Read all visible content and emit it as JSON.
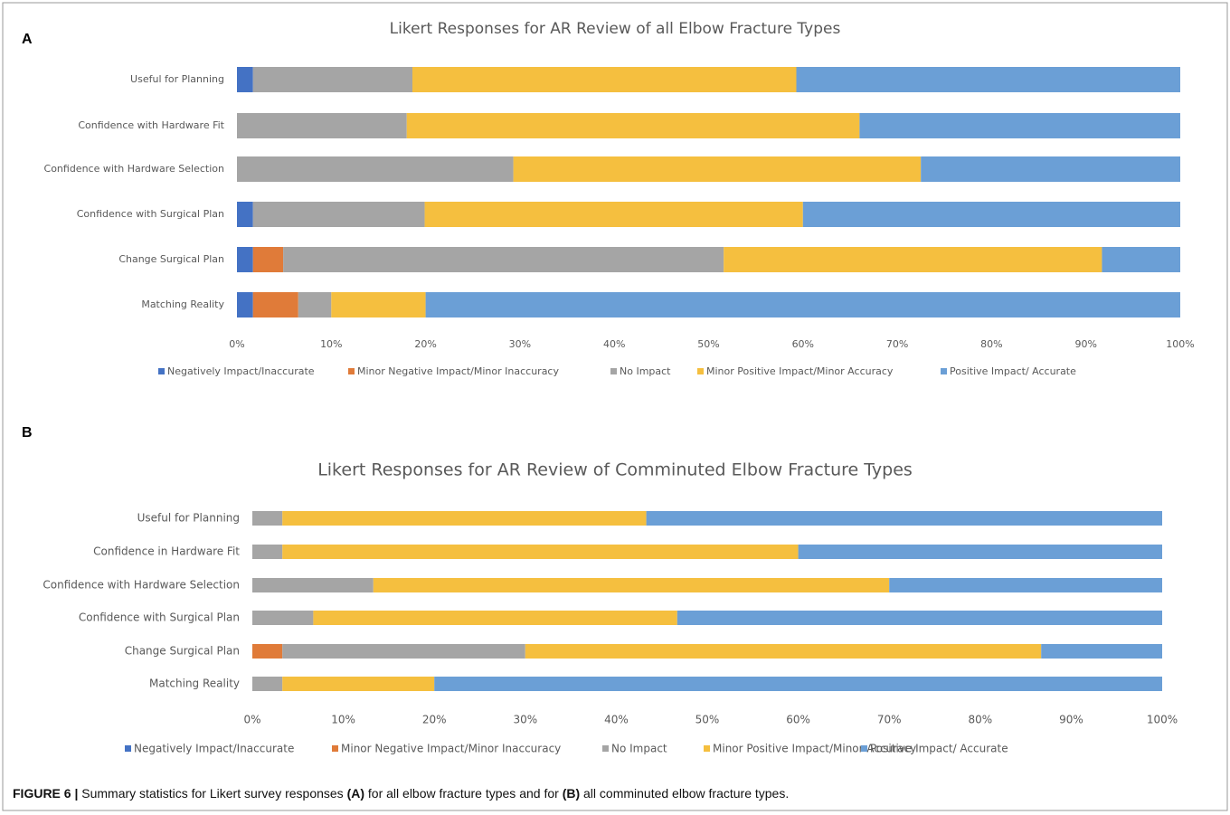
{
  "chart_data": [
    {
      "type": "stacked-bar-horizontal",
      "panel_label": "A",
      "title": "Likert Responses for AR Review of all Elbow Fracture Types",
      "categories": [
        "Useful for Planning",
        "Confidence with Hardware Fit",
        "Confidence with Hardware Selection",
        "Confidence with Surgical Plan",
        "Change Surgical Plan",
        "Matching Reality"
      ],
      "series": [
        {
          "name": "Negatively Impact/Inaccurate",
          "color": "#4472c4",
          "values": [
            1.7,
            0,
            0,
            1.7,
            1.7,
            1.7
          ]
        },
        {
          "name": "Minor Negative Impact/Minor Inaccuracy",
          "color": "#e07b39",
          "values": [
            0,
            0,
            0,
            0,
            3.2,
            4.8
          ]
        },
        {
          "name": "No Impact",
          "color": "#a5a5a5",
          "values": [
            16.9,
            18.0,
            29.3,
            18.2,
            46.7,
            3.5
          ]
        },
        {
          "name": "Minor Positive Impact/Minor Accuracy",
          "color": "#f5bf3f",
          "values": [
            40.7,
            48.0,
            43.2,
            40.1,
            40.1,
            10.0
          ]
        },
        {
          "name": "Positive Impact/ Accurate",
          "color": "#6b9fd6",
          "values": [
            40.7,
            34.0,
            27.5,
            40.0,
            8.3,
            80.0
          ]
        }
      ],
      "xlim": [
        0,
        100
      ],
      "xticks": [
        {
          "value": 0,
          "label": "0%"
        },
        {
          "value": 10,
          "label": "10%"
        },
        {
          "value": 20,
          "label": "20%"
        },
        {
          "value": 30,
          "label": "30%"
        },
        {
          "value": 40,
          "label": "40%"
        },
        {
          "value": 50,
          "label": "50%"
        },
        {
          "value": 60,
          "label": "60%"
        },
        {
          "value": 70,
          "label": "70%"
        },
        {
          "value": 80,
          "label": "80%"
        },
        {
          "value": 90,
          "label": "90%"
        },
        {
          "value": 100,
          "label": "100%"
        }
      ],
      "legend": "bottom"
    },
    {
      "type": "stacked-bar-horizontal",
      "panel_label": "B",
      "title": "Likert Responses for AR Review of Comminuted Elbow Fracture Types",
      "categories": [
        "Useful for Planning",
        "Confidence in Hardware Fit",
        "Confidence with Hardware Selection",
        "Confidence with Surgical Plan",
        "Change Surgical Plan",
        "Matching Reality"
      ],
      "series": [
        {
          "name": "Negatively Impact/Inaccurate",
          "color": "#4472c4",
          "values": [
            0,
            0,
            0,
            0,
            0,
            0
          ]
        },
        {
          "name": "Minor Negative Impact/Minor Inaccuracy",
          "color": "#e07b39",
          "values": [
            0,
            0,
            0,
            0,
            3.3,
            0
          ]
        },
        {
          "name": "No Impact",
          "color": "#a5a5a5",
          "values": [
            3.3,
            3.3,
            13.3,
            6.7,
            26.7,
            3.3
          ]
        },
        {
          "name": "Minor Positive Impact/Minor Accuracy",
          "color": "#f5bf3f",
          "values": [
            40.0,
            56.7,
            56.7,
            40.0,
            56.7,
            16.7
          ]
        },
        {
          "name": "Positive Impact/ Accurate",
          "color": "#6b9fd6",
          "values": [
            56.7,
            40.0,
            30.0,
            53.3,
            13.3,
            80.0
          ]
        }
      ],
      "xlim": [
        0,
        100
      ],
      "xticks": [
        {
          "value": 0,
          "label": "0%"
        },
        {
          "value": 10,
          "label": "10%"
        },
        {
          "value": 20,
          "label": "20%"
        },
        {
          "value": 30,
          "label": "30%"
        },
        {
          "value": 40,
          "label": "40%"
        },
        {
          "value": 50,
          "label": "50%"
        },
        {
          "value": 60,
          "label": "60%"
        },
        {
          "value": 70,
          "label": "70%"
        },
        {
          "value": 80,
          "label": "80%"
        },
        {
          "value": 90,
          "label": "90%"
        },
        {
          "value": 100,
          "label": "100%"
        }
      ],
      "legend": "bottom"
    }
  ],
  "caption": [
    {
      "text": "FIGURE 6 |",
      "bold": true
    },
    {
      "text": " Summary statistics for Likert survey responses ",
      "bold": false
    },
    {
      "text": "(A)",
      "bold": true
    },
    {
      "text": " for all elbow fracture types and for ",
      "bold": false
    },
    {
      "text": "(B)",
      "bold": true
    },
    {
      "text": " all comminuted elbow fracture types.",
      "bold": false
    }
  ]
}
